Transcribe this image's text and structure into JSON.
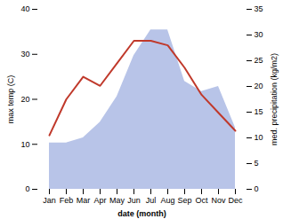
{
  "chart_data": {
    "type": "line",
    "xlabel": "date (month)",
    "ylabel": "max temp (C)",
    "y2label": "med. precipitation (kg/m2)",
    "categories": [
      "Jan",
      "Feb",
      "Mar",
      "Apr",
      "May",
      "Jun",
      "Jul",
      "Aug",
      "Sep",
      "Oct",
      "Nov",
      "Dec"
    ],
    "series": [
      {
        "type": "area",
        "axis": "y2",
        "color": "#b8c4e8",
        "values": [
          9,
          9,
          10,
          13,
          18,
          26,
          31,
          31,
          21,
          19,
          20,
          12
        ]
      },
      {
        "type": "line",
        "axis": "y",
        "color": "#c0392b",
        "values": [
          12,
          20,
          25,
          23,
          28,
          33,
          33,
          32,
          27,
          21,
          17,
          13
        ]
      }
    ],
    "ylim": [
      0,
      40
    ],
    "yticks": [
      0,
      10,
      20,
      30,
      40
    ],
    "y2lim": [
      0,
      35
    ],
    "y2ticks": [
      0,
      5,
      10,
      15,
      20,
      25,
      30,
      35
    ],
    "grid": false
  }
}
